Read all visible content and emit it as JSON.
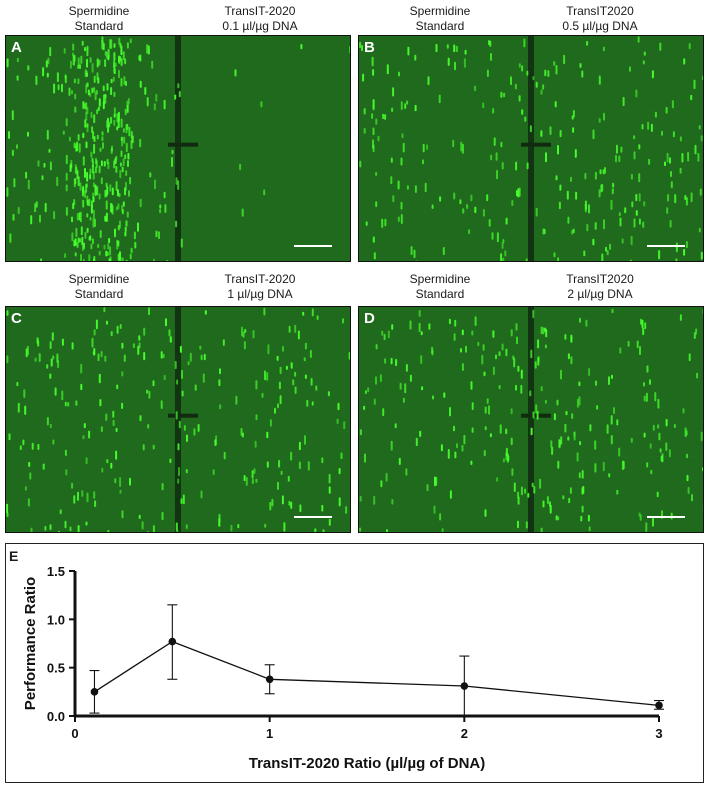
{
  "panels": [
    {
      "id": "A",
      "left_label": [
        "Spermidine",
        "Standard"
      ],
      "right_label": [
        "TransIT-2020",
        "0.1 µl/µg DNA"
      ]
    },
    {
      "id": "B",
      "left_label": [
        "Spermidine",
        "Standard"
      ],
      "right_label": [
        "TransIT2020",
        "0.5 µl/µg DNA"
      ]
    },
    {
      "id": "C",
      "left_label": [
        "Spermidine",
        "Standard"
      ],
      "right_label": [
        "TransIT-2020",
        "1 µl/µg DNA"
      ]
    },
    {
      "id": "D",
      "left_label": [
        "Spermidine",
        "Standard"
      ],
      "right_label": [
        "TransIT2020",
        "2 µl/µg DNA"
      ]
    }
  ],
  "panel_colors": {
    "background": "#1f6a1c",
    "cells": "#48ff2e",
    "divider": "#122a10"
  },
  "chart_label": "E",
  "chart_data": {
    "type": "line",
    "title": "",
    "xlabel": "TransIT-2020 Ratio (µl/µg of DNA)",
    "ylabel": "Performance Ratio",
    "xlim": [
      0,
      3
    ],
    "ylim": [
      0,
      1.5
    ],
    "xticks": [
      0,
      1,
      2,
      3
    ],
    "yticks": [
      0.0,
      0.5,
      1.0,
      1.5
    ],
    "ytick_labels": [
      "0.0",
      "0.5",
      "1.0",
      "1.5"
    ],
    "series": [
      {
        "x": [
          0.1,
          0.5,
          1,
          2,
          3
        ],
        "y": [
          0.25,
          0.77,
          0.38,
          0.31,
          0.11
        ],
        "err_low": [
          0.03,
          0.38,
          0.23,
          0.0,
          0.07
        ],
        "err_high": [
          0.47,
          1.15,
          0.53,
          0.62,
          0.16
        ]
      }
    ],
    "grid": false,
    "legend": "none"
  }
}
